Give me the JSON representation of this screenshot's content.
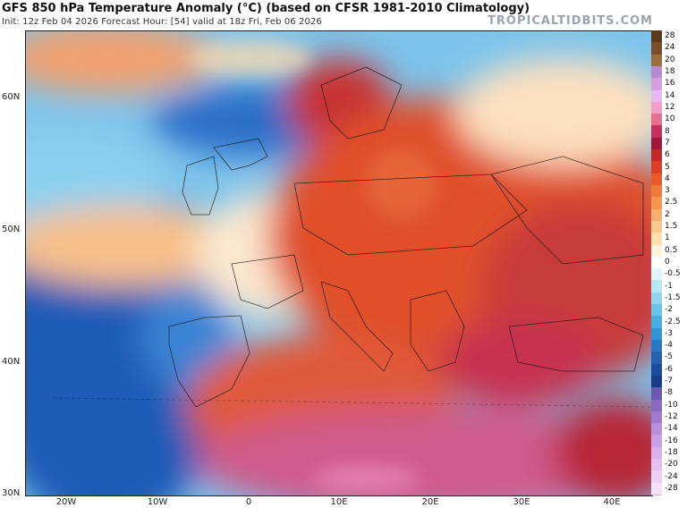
{
  "header": {
    "title": "GFS 850 hPa Temperature Anomaly (°C) (based on CFSR 1981-2010 Climatology)",
    "subtitle": "Init: 12z Feb 04 2026   Forecast Hour: [54]   valid at 18z Fri, Feb 06 2026",
    "brand": "TROPICALTIDBITS.COM"
  },
  "axes": {
    "lat_labels": [
      "60N",
      "50N",
      "40N",
      "30N"
    ],
    "lon_labels": [
      "20W",
      "10W",
      "0",
      "10E",
      "20E",
      "30E",
      "40E"
    ]
  },
  "legend": {
    "labels": [
      "28",
      "24",
      "20",
      "18",
      "16",
      "14",
      "12",
      "10",
      "8",
      "7",
      "6",
      "5",
      "4",
      "3",
      "2.5",
      "2",
      "1.5",
      "1",
      "0.5",
      "0",
      "-0.5",
      "-1",
      "-1.5",
      "-2",
      "-2.5",
      "-3",
      "-4",
      "-5",
      "-6",
      "-7",
      "-8",
      "-10",
      "-12",
      "-14",
      "-16",
      "-18",
      "-20",
      "-24",
      "-28"
    ],
    "colors": [
      "#5a3a1c",
      "#7a4e2a",
      "#9a6d3f",
      "#b58ad0",
      "#d4a0e0",
      "#e8b8f0",
      "#f2a0c8",
      "#e57090",
      "#c43060",
      "#a01838",
      "#c0282a",
      "#d8402a",
      "#e85a2a",
      "#f07a3a",
      "#f49650",
      "#f8b070",
      "#fbc890",
      "#fde0b0",
      "#fff0d8",
      "#ffffff",
      "#e0f4fa",
      "#b8e6f4",
      "#90d6ee",
      "#6ac4e8",
      "#48aee0",
      "#3494d4",
      "#2a78c4",
      "#2460b0",
      "#1e4c9c",
      "#1a3c88",
      "#6a5ab0",
      "#8a6ac0",
      "#a07ad0",
      "#b890dc",
      "#caa0e4",
      "#d8b0ec",
      "#e4c0f0",
      "#eed0f4",
      "#f6e0f8"
    ]
  },
  "map": {
    "description_colors": {
      "atlantic_cold": "#2a6ec8",
      "atlantic_cool": "#7cc4ec",
      "europe_warm": "#e0502a",
      "east_deep": "#c43050",
      "north_africa_pink": "#d05a8a"
    }
  }
}
